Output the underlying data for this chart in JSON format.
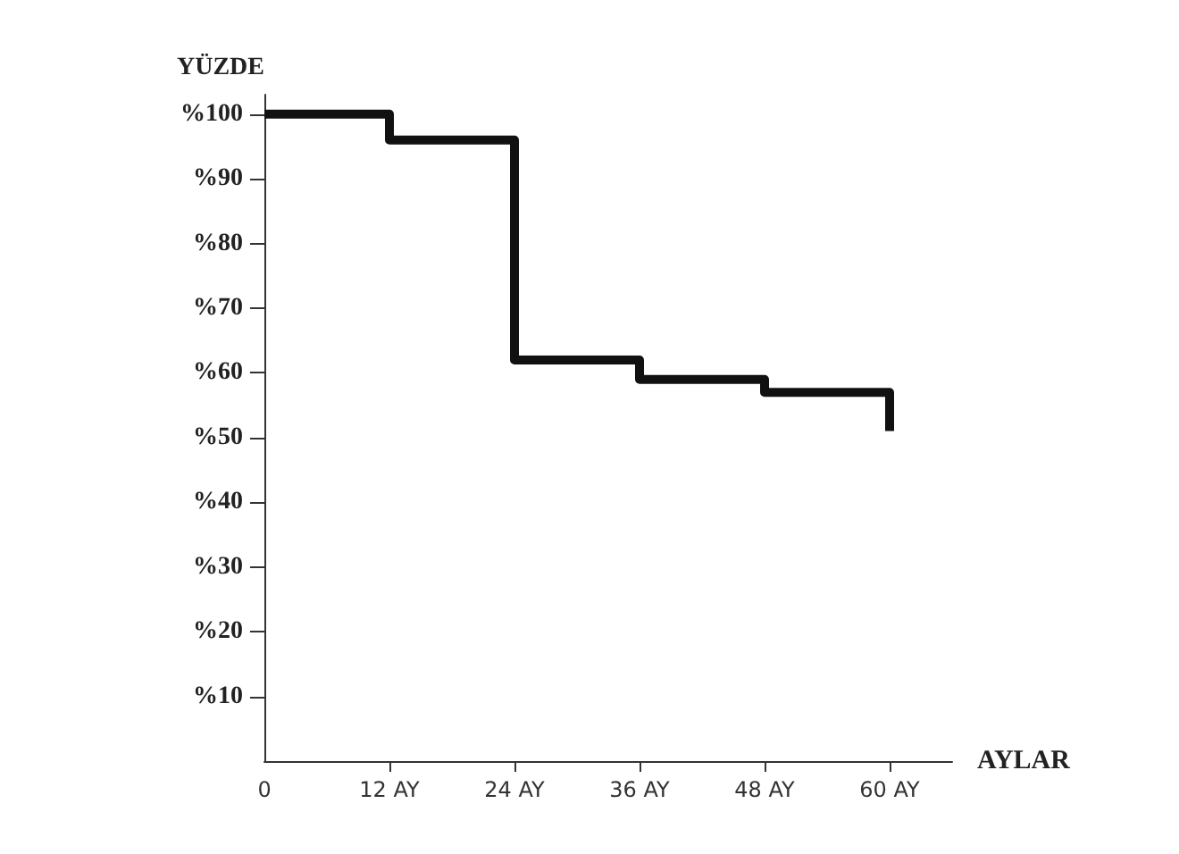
{
  "chart_data": {
    "type": "step",
    "xlabel": "AYLAR",
    "ylabel": "YÜZDE",
    "x": [
      0,
      12,
      24,
      36,
      48,
      60,
      60
    ],
    "series": [
      {
        "color": "#111111",
        "values": [
          100,
          96,
          62,
          59,
          57,
          57,
          51
        ]
      }
    ],
    "xlim": [
      0,
      66
    ],
    "xticks": [
      {
        "value": 0,
        "label": "0"
      },
      {
        "value": 12,
        "label": "12 AY"
      },
      {
        "value": 24,
        "label": "24 AY"
      },
      {
        "value": 36,
        "label": "36 AY"
      },
      {
        "value": 48,
        "label": "48 AY"
      },
      {
        "value": 60,
        "label": "60 AY"
      }
    ],
    "ylim": [
      0,
      103
    ],
    "yticks": [
      {
        "value": 10,
        "label": "%10"
      },
      {
        "value": 20,
        "label": "%20"
      },
      {
        "value": 30,
        "label": "%30"
      },
      {
        "value": 40,
        "label": "%40"
      },
      {
        "value": 50,
        "label": "%50"
      },
      {
        "value": 60,
        "label": "%60"
      },
      {
        "value": 70,
        "label": "%70"
      },
      {
        "value": 80,
        "label": "%80"
      },
      {
        "value": 90,
        "label": "%90"
      },
      {
        "value": 100,
        "label": "%100"
      }
    ],
    "grid": false,
    "marker": "none",
    "line_style": "solid"
  }
}
